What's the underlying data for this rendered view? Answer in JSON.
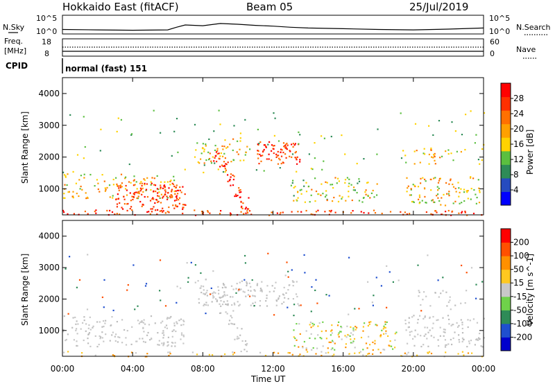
{
  "header": {
    "radar": "Hokkaido East (fitACF)",
    "beam": "Beam 05",
    "date": "25/Jul/2019"
  },
  "strip_panels": {
    "nsky_label": "N.Sky",
    "nsky_ticks": [
      "10^5",
      "10^0"
    ],
    "nsearch_label": "N.Search",
    "nsearch_ticks": [
      "10^5",
      "10^0"
    ],
    "freq_label_line1": "Freq.",
    "freq_label_line2": "[MHz]",
    "freq_ticks": [
      "18",
      "8"
    ],
    "nave_label": "Nave",
    "nave_ticks": [
      "60",
      "0"
    ],
    "cpid_label": "CPID",
    "cpid_text": "normal (fast) 151"
  },
  "colorbars": {
    "power": {
      "label": "Power [dB]",
      "ticks": [
        "28",
        "24",
        "20",
        "16",
        "12",
        "8",
        "4"
      ],
      "colors": [
        "#0000ff",
        "#264bbf",
        "#2e8b57",
        "#5bbf3f",
        "#ffd200",
        "#ffa000",
        "#ff7000",
        "#ff3000",
        "#ff0000"
      ]
    },
    "velocity": {
      "label": "Velocity [m s^-1]",
      "ticks": [
        "200",
        "100",
        "50",
        "15",
        "-15",
        "-50",
        "-100",
        "-200"
      ],
      "colors": [
        "#0000cc",
        "#1f4fcf",
        "#2e8b57",
        "#6fd24a",
        "#c8c8c8",
        "#ffc820",
        "#ff9000",
        "#ff5000",
        "#ff0000"
      ]
    }
  },
  "axes": {
    "ylabel": "Slant Range [km]",
    "yticks": [
      "4000",
      "3000",
      "2000",
      "1000"
    ],
    "xticks": [
      "00:00",
      "04:00",
      "08:00",
      "12:00",
      "16:00",
      "20:00",
      "00:00"
    ],
    "xlabel": "Time UT"
  },
  "chart_data": [
    {
      "type": "line",
      "name": "N.Sky / N.Search",
      "x": [
        0,
        2,
        4,
        6,
        6.5,
        7,
        8,
        9,
        10,
        11,
        12,
        13,
        14,
        16,
        18,
        20,
        22,
        24
      ],
      "y": [
        1.2,
        1.1,
        1.0,
        1.1,
        1.8,
        2.4,
        2.2,
        2.8,
        2.6,
        2.3,
        2.1,
        1.8,
        1.6,
        1.4,
        1.2,
        1.1,
        1.3,
        1.6
      ],
      "xlabel": "",
      "ylabel": "",
      "ylim": [
        0,
        5
      ]
    },
    {
      "type": "heatmap",
      "name": "Power",
      "x_range_hours": [
        0,
        24
      ],
      "y_range_km": [
        180,
        4500
      ],
      "value_range_db": [
        0,
        32
      ]
    },
    {
      "type": "heatmap",
      "name": "Velocity",
      "x_range_hours": [
        0,
        24
      ],
      "y_range_km": [
        180,
        4500
      ],
      "value_range_ms": [
        -250,
        250
      ]
    }
  ]
}
